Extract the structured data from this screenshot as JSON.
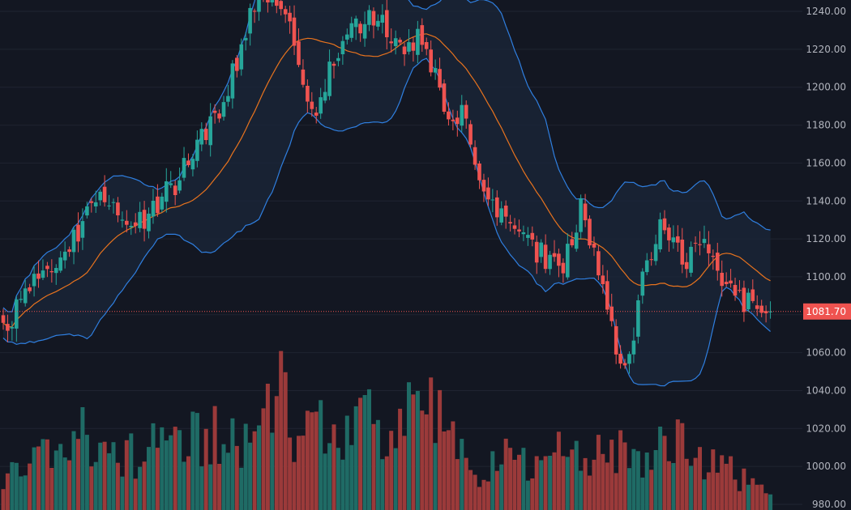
{
  "chart_data": {
    "type": "candlestick",
    "y_axis": {
      "ticks": [
        "980.00",
        "1000.00",
        "1020.00",
        "1040.00",
        "1060.00",
        "1080.00",
        "1100.00",
        "1120.00",
        "1140.00",
        "1160.00",
        "1180.00",
        "1200.00",
        "1220.00",
        "1240.00"
      ],
      "range": [
        977,
        1246
      ]
    },
    "last_price": {
      "value": 1081.7,
      "label": "1081.70"
    },
    "colors": {
      "background": "#131722",
      "grid": "#1f2431",
      "up": "#26a69a",
      "down": "#ef5350",
      "volume_up": "#1f6b65",
      "volume_down": "#9b3a3a",
      "bollinger": "#2f7fe0",
      "bollinger_fill": "#1a2538",
      "moving_average": "#e8731e",
      "price_line": "#ef5350"
    },
    "anchors": {
      "close": [
        [
          0,
          1073
        ],
        [
          8,
          1100
        ],
        [
          14,
          1112
        ],
        [
          22,
          1144
        ],
        [
          30,
          1126
        ],
        [
          38,
          1146
        ],
        [
          50,
          1194
        ],
        [
          58,
          1250
        ],
        [
          63,
          1240
        ],
        [
          66,
          1224
        ],
        [
          70,
          1184
        ],
        [
          78,
          1230
        ],
        [
          84,
          1238
        ],
        [
          90,
          1220
        ],
        [
          95,
          1226
        ],
        [
          100,
          1190
        ],
        [
          104,
          1184
        ],
        [
          111,
          1136
        ],
        [
          117,
          1120
        ],
        [
          127,
          1104
        ],
        [
          131,
          1135
        ],
        [
          137,
          1082
        ],
        [
          141,
          1048
        ],
        [
          146,
          1110
        ],
        [
          150,
          1128
        ],
        [
          154,
          1108
        ],
        [
          159,
          1118
        ],
        [
          163,
          1096
        ],
        [
          170,
          1083
        ],
        [
          174,
          1081.7
        ]
      ],
      "volume": [
        [
          0,
          12
        ],
        [
          5,
          20
        ],
        [
          10,
          18
        ],
        [
          16,
          26
        ],
        [
          22,
          22
        ],
        [
          28,
          18
        ],
        [
          34,
          22
        ],
        [
          40,
          20
        ],
        [
          46,
          28
        ],
        [
          52,
          24
        ],
        [
          58,
          30
        ],
        [
          63,
          40
        ],
        [
          66,
          26
        ],
        [
          70,
          34
        ],
        [
          76,
          22
        ],
        [
          82,
          30
        ],
        [
          86,
          28
        ],
        [
          90,
          24
        ],
        [
          95,
          40
        ],
        [
          100,
          26
        ],
        [
          104,
          18
        ],
        [
          108,
          14
        ],
        [
          112,
          18
        ],
        [
          117,
          16
        ],
        [
          122,
          12
        ],
        [
          128,
          22
        ],
        [
          132,
          14
        ],
        [
          137,
          24
        ],
        [
          141,
          18
        ],
        [
          146,
          14
        ],
        [
          150,
          22
        ],
        [
          154,
          28
        ],
        [
          158,
          18
        ],
        [
          163,
          14
        ],
        [
          170,
          10
        ],
        [
          174,
          8
        ]
      ]
    }
  }
}
